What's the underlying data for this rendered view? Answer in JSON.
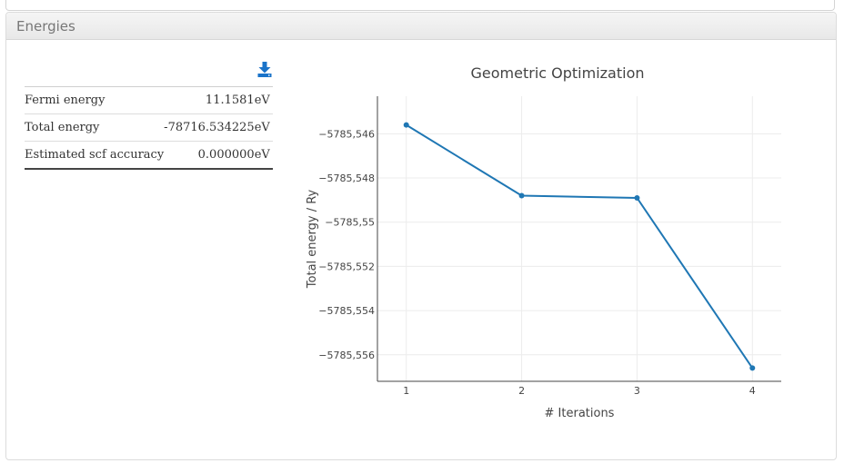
{
  "panel": {
    "heading": "Energies"
  },
  "icons": {
    "download": "download-icon",
    "download_color": "#1a73c9"
  },
  "table": {
    "rows": [
      {
        "label": "Fermi energy",
        "value": "11.1581",
        "unit": "eV"
      },
      {
        "label": "Total energy",
        "value": "-78716.534225",
        "unit": "eV"
      },
      {
        "label": "Estimated scf accuracy",
        "value": "0.000000",
        "unit": "eV"
      }
    ]
  },
  "chart_data": {
    "type": "line",
    "title": "Geometric Optimization",
    "xlabel": "# Iterations",
    "ylabel": "Total energy / Ry",
    "x": [
      1,
      2,
      3,
      4
    ],
    "series": [
      {
        "values": [
          -5785.5456,
          -5785.5488,
          -5785.5489,
          -5785.5566
        ]
      }
    ],
    "xlim": [
      0.75,
      4.25
    ],
    "ylim": [
      -5785.5572,
      -5785.5443
    ],
    "xticks": [
      1,
      2,
      3,
      4
    ],
    "xtick_labels": [
      "1",
      "2",
      "3",
      "4"
    ],
    "yticks": [
      -5785.546,
      -5785.548,
      -5785.55,
      -5785.552,
      -5785.554,
      -5785.556
    ],
    "ytick_labels": [
      "−5785,546",
      "−5785,548",
      "−5785,55",
      "−5785,552",
      "−5785,554",
      "−5785,556"
    ],
    "grid": true,
    "line_color": "#1f77b4"
  }
}
